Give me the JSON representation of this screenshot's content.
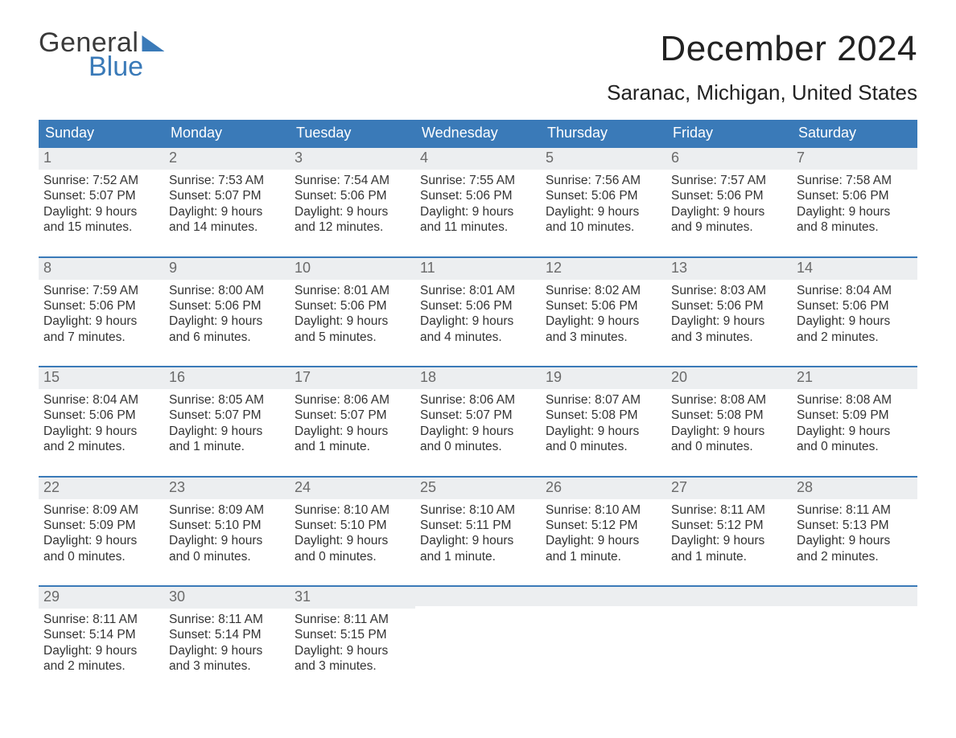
{
  "brand": {
    "word1": "General",
    "word2": "Blue"
  },
  "title": "December 2024",
  "location": "Saranac, Michigan, United States",
  "colors": {
    "header_bg": "#3a7ab8",
    "header_text": "#ffffff",
    "date_strip_bg": "#eceef0",
    "date_strip_text": "#6a6a6a",
    "row_separator": "#3a7ab8",
    "body_text": "#333333",
    "page_bg": "#ffffff"
  },
  "day_headers": [
    "Sunday",
    "Monday",
    "Tuesday",
    "Wednesday",
    "Thursday",
    "Friday",
    "Saturday"
  ],
  "weeks": [
    [
      {
        "n": "1",
        "sunrise": "Sunrise: 7:52 AM",
        "sunset": "Sunset: 5:07 PM",
        "daylight": "Daylight: 9 hours and 15 minutes."
      },
      {
        "n": "2",
        "sunrise": "Sunrise: 7:53 AM",
        "sunset": "Sunset: 5:07 PM",
        "daylight": "Daylight: 9 hours and 14 minutes."
      },
      {
        "n": "3",
        "sunrise": "Sunrise: 7:54 AM",
        "sunset": "Sunset: 5:06 PM",
        "daylight": "Daylight: 9 hours and 12 minutes."
      },
      {
        "n": "4",
        "sunrise": "Sunrise: 7:55 AM",
        "sunset": "Sunset: 5:06 PM",
        "daylight": "Daylight: 9 hours and 11 minutes."
      },
      {
        "n": "5",
        "sunrise": "Sunrise: 7:56 AM",
        "sunset": "Sunset: 5:06 PM",
        "daylight": "Daylight: 9 hours and 10 minutes."
      },
      {
        "n": "6",
        "sunrise": "Sunrise: 7:57 AM",
        "sunset": "Sunset: 5:06 PM",
        "daylight": "Daylight: 9 hours and 9 minutes."
      },
      {
        "n": "7",
        "sunrise": "Sunrise: 7:58 AM",
        "sunset": "Sunset: 5:06 PM",
        "daylight": "Daylight: 9 hours and 8 minutes."
      }
    ],
    [
      {
        "n": "8",
        "sunrise": "Sunrise: 7:59 AM",
        "sunset": "Sunset: 5:06 PM",
        "daylight": "Daylight: 9 hours and 7 minutes."
      },
      {
        "n": "9",
        "sunrise": "Sunrise: 8:00 AM",
        "sunset": "Sunset: 5:06 PM",
        "daylight": "Daylight: 9 hours and 6 minutes."
      },
      {
        "n": "10",
        "sunrise": "Sunrise: 8:01 AM",
        "sunset": "Sunset: 5:06 PM",
        "daylight": "Daylight: 9 hours and 5 minutes."
      },
      {
        "n": "11",
        "sunrise": "Sunrise: 8:01 AM",
        "sunset": "Sunset: 5:06 PM",
        "daylight": "Daylight: 9 hours and 4 minutes."
      },
      {
        "n": "12",
        "sunrise": "Sunrise: 8:02 AM",
        "sunset": "Sunset: 5:06 PM",
        "daylight": "Daylight: 9 hours and 3 minutes."
      },
      {
        "n": "13",
        "sunrise": "Sunrise: 8:03 AM",
        "sunset": "Sunset: 5:06 PM",
        "daylight": "Daylight: 9 hours and 3 minutes."
      },
      {
        "n": "14",
        "sunrise": "Sunrise: 8:04 AM",
        "sunset": "Sunset: 5:06 PM",
        "daylight": "Daylight: 9 hours and 2 minutes."
      }
    ],
    [
      {
        "n": "15",
        "sunrise": "Sunrise: 8:04 AM",
        "sunset": "Sunset: 5:06 PM",
        "daylight": "Daylight: 9 hours and 2 minutes."
      },
      {
        "n": "16",
        "sunrise": "Sunrise: 8:05 AM",
        "sunset": "Sunset: 5:07 PM",
        "daylight": "Daylight: 9 hours and 1 minute."
      },
      {
        "n": "17",
        "sunrise": "Sunrise: 8:06 AM",
        "sunset": "Sunset: 5:07 PM",
        "daylight": "Daylight: 9 hours and 1 minute."
      },
      {
        "n": "18",
        "sunrise": "Sunrise: 8:06 AM",
        "sunset": "Sunset: 5:07 PM",
        "daylight": "Daylight: 9 hours and 0 minutes."
      },
      {
        "n": "19",
        "sunrise": "Sunrise: 8:07 AM",
        "sunset": "Sunset: 5:08 PM",
        "daylight": "Daylight: 9 hours and 0 minutes."
      },
      {
        "n": "20",
        "sunrise": "Sunrise: 8:08 AM",
        "sunset": "Sunset: 5:08 PM",
        "daylight": "Daylight: 9 hours and 0 minutes."
      },
      {
        "n": "21",
        "sunrise": "Sunrise: 8:08 AM",
        "sunset": "Sunset: 5:09 PM",
        "daylight": "Daylight: 9 hours and 0 minutes."
      }
    ],
    [
      {
        "n": "22",
        "sunrise": "Sunrise: 8:09 AM",
        "sunset": "Sunset: 5:09 PM",
        "daylight": "Daylight: 9 hours and 0 minutes."
      },
      {
        "n": "23",
        "sunrise": "Sunrise: 8:09 AM",
        "sunset": "Sunset: 5:10 PM",
        "daylight": "Daylight: 9 hours and 0 minutes."
      },
      {
        "n": "24",
        "sunrise": "Sunrise: 8:10 AM",
        "sunset": "Sunset: 5:10 PM",
        "daylight": "Daylight: 9 hours and 0 minutes."
      },
      {
        "n": "25",
        "sunrise": "Sunrise: 8:10 AM",
        "sunset": "Sunset: 5:11 PM",
        "daylight": "Daylight: 9 hours and 1 minute."
      },
      {
        "n": "26",
        "sunrise": "Sunrise: 8:10 AM",
        "sunset": "Sunset: 5:12 PM",
        "daylight": "Daylight: 9 hours and 1 minute."
      },
      {
        "n": "27",
        "sunrise": "Sunrise: 8:11 AM",
        "sunset": "Sunset: 5:12 PM",
        "daylight": "Daylight: 9 hours and 1 minute."
      },
      {
        "n": "28",
        "sunrise": "Sunrise: 8:11 AM",
        "sunset": "Sunset: 5:13 PM",
        "daylight": "Daylight: 9 hours and 2 minutes."
      }
    ],
    [
      {
        "n": "29",
        "sunrise": "Sunrise: 8:11 AM",
        "sunset": "Sunset: 5:14 PM",
        "daylight": "Daylight: 9 hours and 2 minutes."
      },
      {
        "n": "30",
        "sunrise": "Sunrise: 8:11 AM",
        "sunset": "Sunset: 5:14 PM",
        "daylight": "Daylight: 9 hours and 3 minutes."
      },
      {
        "n": "31",
        "sunrise": "Sunrise: 8:11 AM",
        "sunset": "Sunset: 5:15 PM",
        "daylight": "Daylight: 9 hours and 3 minutes."
      },
      {
        "empty": true
      },
      {
        "empty": true
      },
      {
        "empty": true
      },
      {
        "empty": true
      }
    ]
  ]
}
